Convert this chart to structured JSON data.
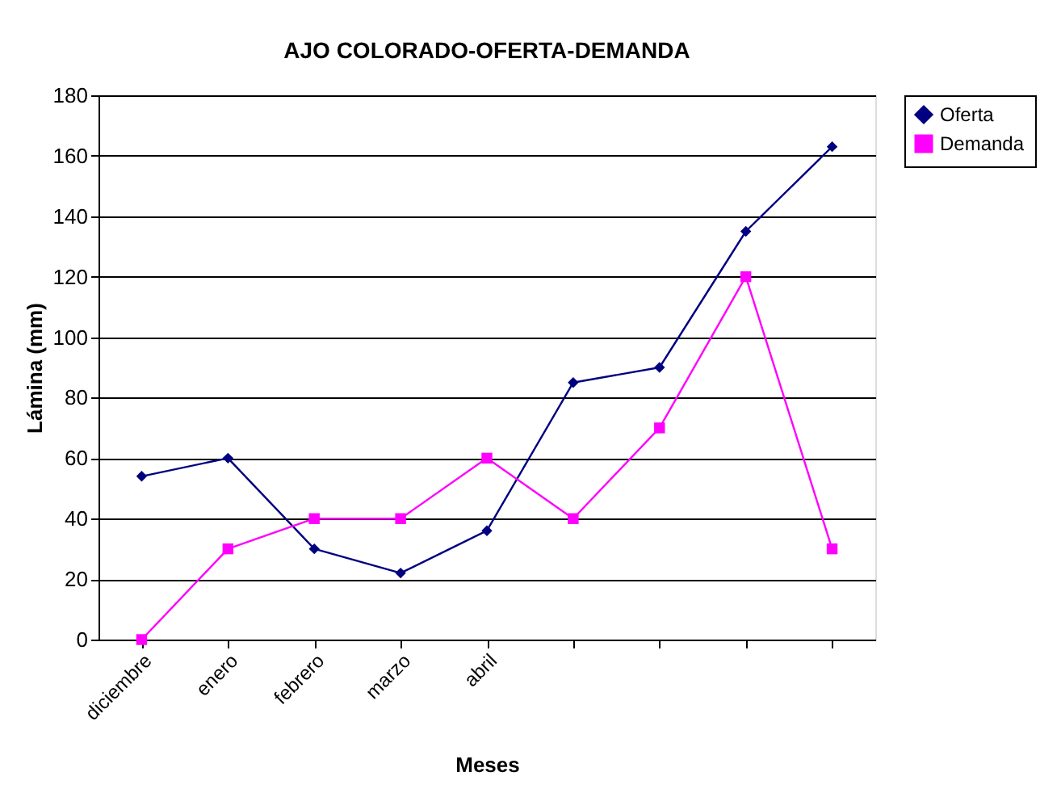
{
  "chart_data": {
    "type": "line",
    "title": "AJO COLORADO-OFERTA-DEMANDA",
    "xlabel": "Meses",
    "ylabel": "Lámina (mm)",
    "categories": [
      "diciembre",
      "enero",
      "febrero",
      "marzo",
      "abril",
      null,
      null,
      null,
      null
    ],
    "series": [
      {
        "name": "Oferta",
        "color": "#000080",
        "marker": "diamond",
        "values": [
          54,
          60,
          30,
          22,
          36,
          85,
          90,
          135,
          163
        ]
      },
      {
        "name": "Demanda",
        "color": "#ff00ff",
        "marker": "square",
        "values": [
          0,
          30,
          40,
          40,
          60,
          40,
          70,
          120,
          30
        ]
      }
    ],
    "ylim": [
      0,
      180
    ],
    "yticks": [
      0,
      20,
      40,
      60,
      80,
      100,
      120,
      140,
      160,
      180
    ],
    "grid": "y",
    "legend": "right",
    "line_style": "solid"
  }
}
